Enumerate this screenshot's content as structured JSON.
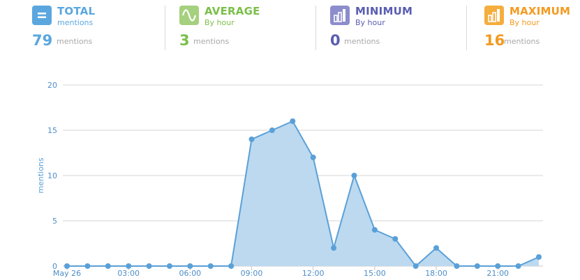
{
  "stats": [
    {
      "key": "total",
      "title": "TOTAL",
      "subtitle": "mentions",
      "value": "79",
      "unit": "mentions",
      "color": "#5aa7df",
      "icon": "equals-icon"
    },
    {
      "key": "average",
      "title": "AVERAGE",
      "subtitle": "By hour",
      "value": "3",
      "unit": "mentions",
      "color": "#7bbf4a",
      "icon": "wave-icon"
    },
    {
      "key": "minimum",
      "title": "MINIMUM",
      "subtitle": "By hour",
      "value": "0",
      "unit": "mentions",
      "color": "#5a5db0",
      "icon": "bar-chart-icon"
    },
    {
      "key": "maximum",
      "title": "MAXIMUM",
      "subtitle": "By hour",
      "value": "16",
      "unit": "mentions",
      "color": "#f39a1f",
      "icon": "bar-chart-icon"
    }
  ],
  "chart_data": {
    "type": "area",
    "ylabel": "mentions",
    "ylim": [
      0,
      20
    ],
    "yticks": [
      0,
      5,
      10,
      15,
      20
    ],
    "x_tick_labels": [
      "May 26",
      "03:00",
      "06:00",
      "09:00",
      "12:00",
      "15:00",
      "18:00",
      "21:00"
    ],
    "x_tick_hours": [
      0,
      3,
      6,
      9,
      12,
      15,
      18,
      21
    ],
    "hours": [
      0,
      1,
      2,
      3,
      4,
      5,
      6,
      7,
      8,
      9,
      10,
      11,
      12,
      13,
      14,
      15,
      16,
      17,
      18,
      19,
      20,
      21,
      22,
      23
    ],
    "values": [
      0,
      0,
      0,
      0,
      0,
      0,
      0,
      0,
      0,
      14,
      15,
      16,
      12,
      2,
      10,
      4,
      3,
      0,
      2,
      0,
      0,
      0,
      0,
      1
    ],
    "grid": true,
    "line_color": "#5aa0d8",
    "fill_color": "#bcd9ef"
  }
}
